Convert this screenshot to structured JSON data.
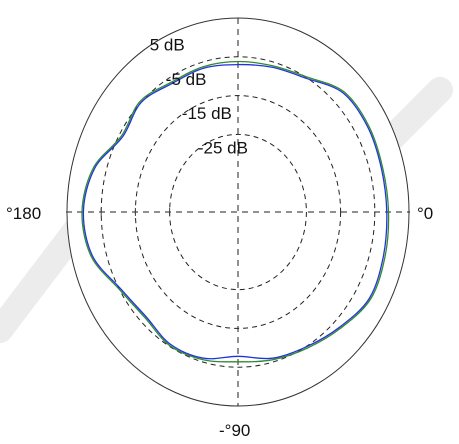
{
  "chart_data": {
    "type": "polar-line",
    "title": "",
    "radial_ticks": [
      "5 dB",
      "-5 dB",
      "-15 dB",
      "-25 dB"
    ],
    "radial_values_db": [
      5,
      -5,
      -15,
      -25
    ],
    "angle_labels": [
      "0",
      "180",
      "-90"
    ],
    "range_db": [
      -45,
      5
    ],
    "grid": true,
    "series": [
      {
        "color": "#2e8b2e",
        "angles_deg": [
          0,
          15,
          30,
          45,
          60,
          75,
          90,
          105,
          120,
          135,
          150,
          165,
          180,
          195,
          210,
          225,
          240,
          255,
          270,
          285,
          300,
          315,
          330,
          345
        ],
        "values_db": [
          -1.0,
          -1.2,
          -0.8,
          -1.2,
          -4.8,
          -6.0,
          -6.2,
          -6.2,
          -6.3,
          -4.6,
          -5.7,
          -1.2,
          0.6,
          -0.6,
          -5.0,
          -6.5,
          -5.2,
          -5.6,
          -6.4,
          -5.6,
          -4.5,
          -2.6,
          -0.2,
          -0.5
        ]
      },
      {
        "color": "#2233dd",
        "angles_deg": [
          0,
          15,
          30,
          45,
          60,
          75,
          90,
          105,
          120,
          135,
          150,
          165,
          180,
          195,
          210,
          225,
          240,
          255,
          270,
          285,
          300,
          315,
          330,
          345
        ],
        "values_db": [
          -1.5,
          -1.6,
          -1.2,
          -1.6,
          -5.2,
          -6.4,
          -7.0,
          -6.6,
          -6.7,
          -5.0,
          -6.1,
          -1.6,
          0.2,
          -1.0,
          -5.4,
          -6.9,
          -5.6,
          -6.0,
          -7.8,
          -6.0,
          -4.9,
          -3.0,
          -0.6,
          -1.0
        ]
      }
    ]
  }
}
